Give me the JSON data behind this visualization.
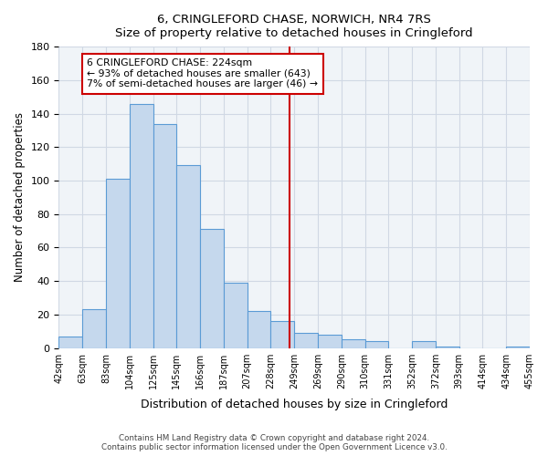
{
  "title": "6, CRINGLEFORD CHASE, NORWICH, NR4 7RS",
  "subtitle": "Size of property relative to detached houses in Cringleford",
  "xlabel": "Distribution of detached houses by size in Cringleford",
  "ylabel": "Number of detached properties",
  "bin_labels": [
    "42sqm",
    "63sqm",
    "83sqm",
    "104sqm",
    "125sqm",
    "145sqm",
    "166sqm",
    "187sqm",
    "207sqm",
    "228sqm",
    "249sqm",
    "269sqm",
    "290sqm",
    "310sqm",
    "331sqm",
    "352sqm",
    "372sqm",
    "393sqm",
    "414sqm",
    "434sqm",
    "455sqm"
  ],
  "bar_values": [
    7,
    23,
    101,
    146,
    134,
    109,
    71,
    39,
    22,
    16,
    9,
    8,
    5,
    4,
    0,
    4,
    1,
    0,
    0,
    1
  ],
  "bar_color": "#c5d8ed",
  "bar_edge_color": "#5b9bd5",
  "ylim": [
    0,
    180
  ],
  "yticks": [
    0,
    20,
    40,
    60,
    80,
    100,
    120,
    140,
    160,
    180
  ],
  "vline_color": "#cc0000",
  "annotation_title": "6 CRINGLEFORD CHASE: 224sqm",
  "annotation_line1": "← 93% of detached houses are smaller (643)",
  "annotation_line2": "7% of semi-detached houses are larger (46) →",
  "annotation_box_color": "#cc0000",
  "footnote1": "Contains HM Land Registry data © Crown copyright and database right 2024.",
  "footnote2": "Contains public sector information licensed under the Open Government Licence v3.0.",
  "grid_color": "#d0d8e4",
  "background_color": "#f0f4f8"
}
